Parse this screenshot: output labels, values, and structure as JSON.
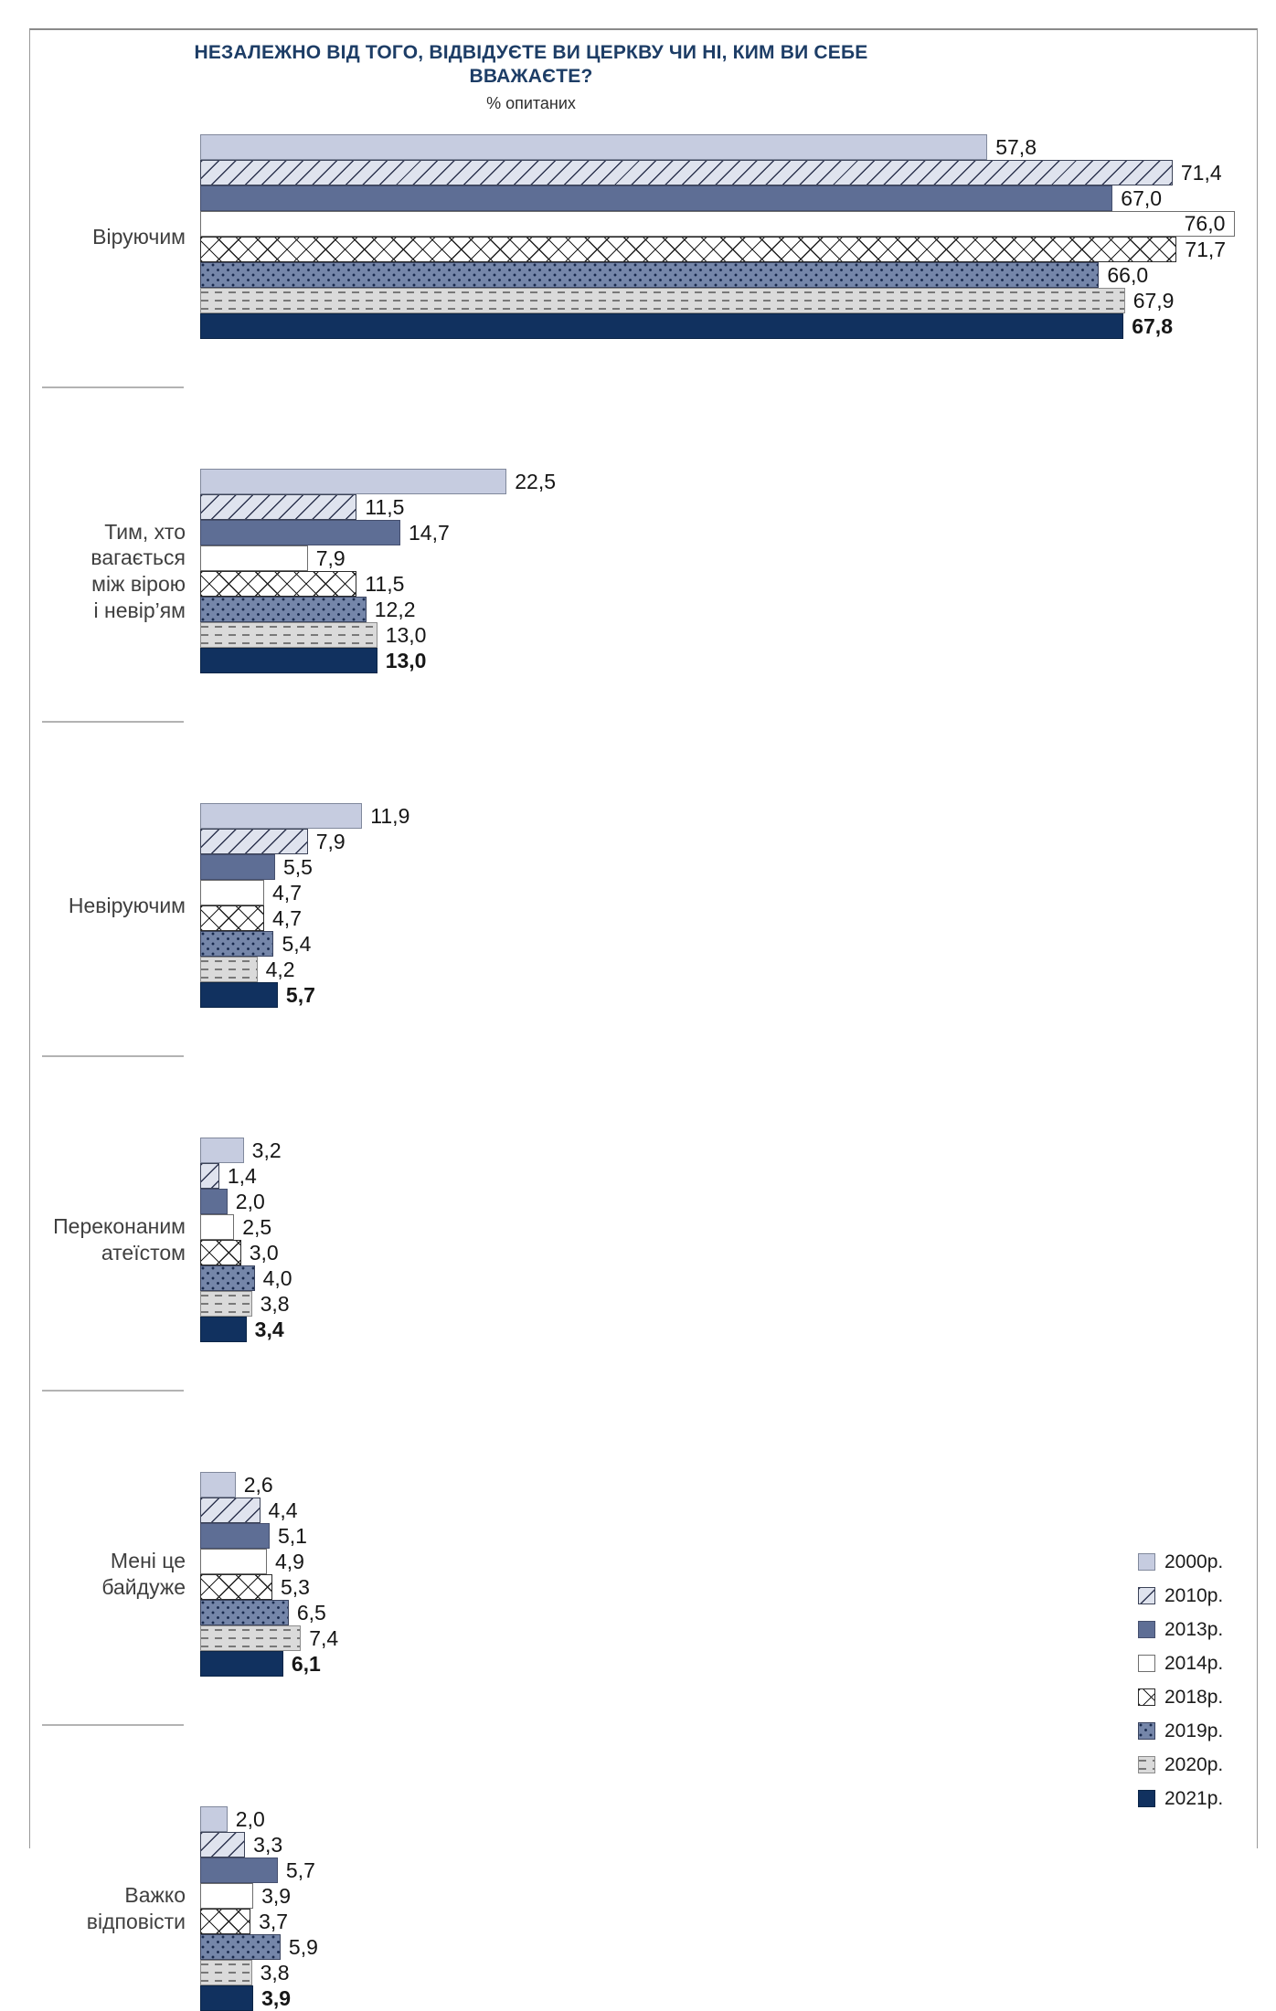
{
  "title": "НЕЗАЛЕЖНО ВІД ТОГО, ВІДВІДУЄТЕ ВИ ЦЕРКВУ ЧИ НІ, КИМ ВИ СЕБЕ ВВАЖАЄТЕ?",
  "subtitle": "% опитаних",
  "legend": [
    {
      "label": "2000р.",
      "series": "s2000"
    },
    {
      "label": "2010р.",
      "series": "s2010"
    },
    {
      "label": "2013р.",
      "series": "s2013"
    },
    {
      "label": "2014р.",
      "series": "s2014"
    },
    {
      "label": "2018р.",
      "series": "s2018"
    },
    {
      "label": "2019р.",
      "series": "s2019"
    },
    {
      "label": "2020р.",
      "series": "s2020"
    },
    {
      "label": "2021р.",
      "series": "s2021"
    }
  ],
  "chart_data": {
    "type": "bar",
    "orientation": "horizontal",
    "unit": "% of respondents",
    "title": "НЕЗАЛЕЖНО ВІД ТОГО, ВІДВІДУЄТЕ ВИ ЦЕРКВУ ЧИ НІ, КИМ ВИ СЕБЕ ВВАЖАЄТЕ?",
    "xlabel": "% опитаних",
    "xlim": [
      0,
      76
    ],
    "series_years": [
      "2000",
      "2010",
      "2013",
      "2014",
      "2018",
      "2019",
      "2020",
      "2021"
    ],
    "categories": [
      {
        "label_lines": [
          "Віруючим"
        ],
        "values": [
          57.8,
          71.4,
          67.0,
          76.0,
          71.7,
          66.0,
          67.9,
          67.8
        ]
      },
      {
        "label_lines": [
          "Тим, хто",
          "вагається",
          "між вірою",
          "і невір’ям"
        ],
        "values": [
          22.5,
          11.5,
          14.7,
          7.9,
          11.5,
          12.2,
          13.0,
          13.0
        ]
      },
      {
        "label_lines": [
          "Невіруючим"
        ],
        "values": [
          11.9,
          7.9,
          5.5,
          4.7,
          4.7,
          5.4,
          4.2,
          5.7
        ]
      },
      {
        "label_lines": [
          "Переконаним",
          "атеїстом"
        ],
        "values": [
          3.2,
          1.4,
          2.0,
          2.5,
          3.0,
          4.0,
          3.8,
          3.4
        ]
      },
      {
        "label_lines": [
          "Мені це",
          "байдуже"
        ],
        "values": [
          2.6,
          4.4,
          5.1,
          4.9,
          5.3,
          6.5,
          7.4,
          6.1
        ]
      },
      {
        "label_lines": [
          "Важко",
          "відповісти"
        ],
        "values": [
          2.0,
          3.3,
          5.7,
          3.9,
          3.7,
          5.9,
          3.8,
          3.9
        ]
      }
    ],
    "decimal_separator": ",",
    "grid": false,
    "legend_position": "bottom-right"
  }
}
